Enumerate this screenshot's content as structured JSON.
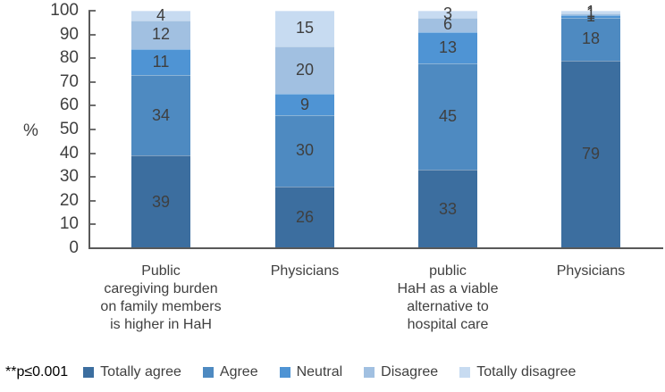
{
  "chart_data": {
    "type": "bar",
    "stacked": true,
    "title": "",
    "ylabel": "%",
    "xlabel": "",
    "ylim": [
      0,
      100
    ],
    "yticks": [
      0,
      10,
      20,
      30,
      40,
      50,
      60,
      70,
      80,
      90,
      100
    ],
    "grid": false,
    "legend_position": "bottom",
    "categories": [
      [
        "Public",
        "caregiving burden",
        "on family members",
        "is higher in HaH"
      ],
      [
        "Physicians"
      ],
      [
        "public",
        "HaH as a viable",
        "alternative to",
        "hospital care"
      ],
      [
        "Physicians"
      ]
    ],
    "series": [
      {
        "name": "Totally agree",
        "color": "#3C6E9F",
        "values": [
          39,
          26,
          33,
          79
        ]
      },
      {
        "name": "Agree",
        "color": "#4E8AC1",
        "values": [
          34,
          30,
          45,
          18
        ]
      },
      {
        "name": "Neutral",
        "color": "#4F94D4",
        "values": [
          11,
          9,
          13,
          1
        ]
      },
      {
        "name": "Disagree",
        "color": "#A1C0E1",
        "values": [
          12,
          20,
          6,
          1
        ]
      },
      {
        "name": "Totally disagree",
        "color": "#C7DBF1",
        "values": [
          4,
          15,
          3,
          1
        ]
      }
    ]
  },
  "footer": {
    "significance_note": "**p≤0.001"
  }
}
